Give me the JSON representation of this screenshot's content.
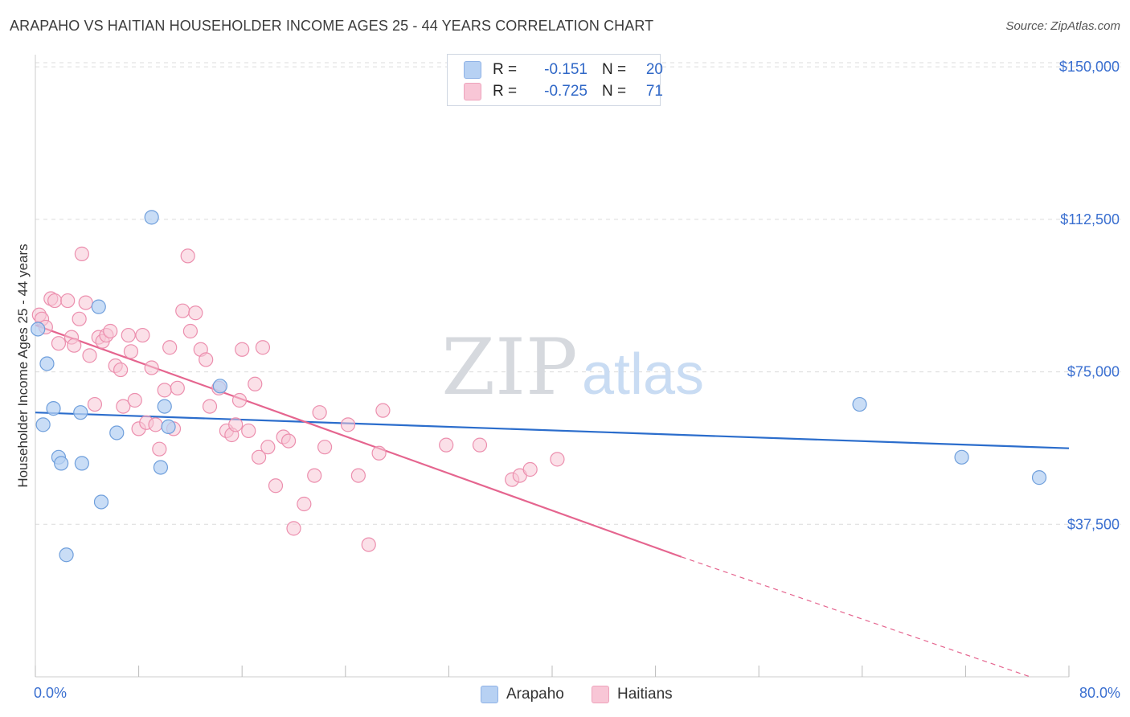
{
  "title": "ARAPAHO VS HAITIAN HOUSEHOLDER INCOME AGES 25 - 44 YEARS CORRELATION CHART",
  "source": "Source: ZipAtlas.com",
  "watermark": {
    "zip": "ZIP",
    "atlas": "atlas"
  },
  "legend": {
    "rows": [
      {
        "r_label": "R =",
        "r_value": "-0.151",
        "n_label": "N =",
        "n_value": "20",
        "color": "#aac8f0"
      },
      {
        "r_label": "R =",
        "r_value": "-0.725",
        "n_label": "N =",
        "n_value": "71",
        "color": "#f7b8cc"
      }
    ]
  },
  "bottom_legend": [
    "Arapaho",
    "Haitians"
  ],
  "colors": {
    "arapaho_fill": "#b7d1f3",
    "arapaho_stroke": "#6f9fdc",
    "arapaho_line": "#2b6dcc",
    "haitian_fill": "#f8c6d6",
    "haitian_stroke": "#ec8fae",
    "haitian_line": "#e5658f",
    "tick_label": "#3a6fd0",
    "grid": "#dcdcdc"
  },
  "chart_data": {
    "type": "scatter",
    "title": "ARAPAHO VS HAITIAN HOUSEHOLDER INCOME AGES 25 - 44 YEARS CORRELATION CHART",
    "xlabel": "",
    "ylabel": "Householder Income Ages 25 - 44 years",
    "xlim": [
      0,
      80
    ],
    "ylim": [
      0,
      153000
    ],
    "x_tick_labels": [
      "0.0%",
      "80.0%"
    ],
    "y_ticks": [
      37500,
      75000,
      112500,
      150000
    ],
    "y_tick_labels": [
      "$37,500",
      "$75,000",
      "$112,500",
      "$150,000"
    ],
    "grid": true,
    "legend_position": "top-center",
    "series": [
      {
        "name": "Arapaho",
        "points": [
          [
            0.2,
            85500
          ],
          [
            0.6,
            62000
          ],
          [
            0.9,
            77000
          ],
          [
            1.4,
            66000
          ],
          [
            1.8,
            54000
          ],
          [
            2.0,
            52500
          ],
          [
            2.4,
            30000
          ],
          [
            3.5,
            65000
          ],
          [
            3.6,
            52500
          ],
          [
            4.9,
            91000
          ],
          [
            5.1,
            43000
          ],
          [
            6.3,
            60000
          ],
          [
            9.0,
            113000
          ],
          [
            9.7,
            51500
          ],
          [
            10.0,
            66500
          ],
          [
            10.3,
            61500
          ],
          [
            14.3,
            71500
          ],
          [
            63.8,
            67000
          ],
          [
            71.7,
            54000
          ],
          [
            77.7,
            49000
          ]
        ],
        "trend": {
          "x0": 0,
          "y0": 65000,
          "x1": 80,
          "y1": 56200
        }
      },
      {
        "name": "Haitians",
        "points": [
          [
            0.3,
            89000
          ],
          [
            0.5,
            88000
          ],
          [
            0.8,
            86000
          ],
          [
            1.2,
            93000
          ],
          [
            1.5,
            92500
          ],
          [
            1.8,
            82000
          ],
          [
            2.5,
            92500
          ],
          [
            2.8,
            83500
          ],
          [
            3.0,
            81500
          ],
          [
            3.4,
            88000
          ],
          [
            3.6,
            104000
          ],
          [
            3.9,
            92000
          ],
          [
            4.2,
            79000
          ],
          [
            4.6,
            67000
          ],
          [
            4.9,
            83500
          ],
          [
            5.2,
            82500
          ],
          [
            5.5,
            84000
          ],
          [
            5.8,
            85000
          ],
          [
            6.2,
            76500
          ],
          [
            6.6,
            75500
          ],
          [
            6.8,
            66500
          ],
          [
            7.2,
            84000
          ],
          [
            7.4,
            80000
          ],
          [
            7.7,
            68000
          ],
          [
            8.0,
            61000
          ],
          [
            8.3,
            84000
          ],
          [
            8.6,
            62500
          ],
          [
            9.0,
            76000
          ],
          [
            9.3,
            62000
          ],
          [
            9.6,
            56000
          ],
          [
            10.0,
            70500
          ],
          [
            10.4,
            81000
          ],
          [
            10.7,
            61000
          ],
          [
            11.0,
            71000
          ],
          [
            11.4,
            90000
          ],
          [
            11.8,
            103500
          ],
          [
            12.0,
            85000
          ],
          [
            12.4,
            89500
          ],
          [
            12.8,
            80500
          ],
          [
            13.2,
            78000
          ],
          [
            13.5,
            66500
          ],
          [
            14.2,
            71000
          ],
          [
            14.8,
            60500
          ],
          [
            15.2,
            59500
          ],
          [
            15.5,
            62000
          ],
          [
            15.8,
            68000
          ],
          [
            16.0,
            80500
          ],
          [
            16.5,
            60500
          ],
          [
            17.0,
            72000
          ],
          [
            17.3,
            54000
          ],
          [
            17.6,
            81000
          ],
          [
            18.0,
            56500
          ],
          [
            18.6,
            47000
          ],
          [
            19.2,
            59000
          ],
          [
            19.6,
            58000
          ],
          [
            20.0,
            36500
          ],
          [
            20.8,
            42500
          ],
          [
            21.6,
            49500
          ],
          [
            22.0,
            65000
          ],
          [
            22.4,
            56500
          ],
          [
            24.2,
            62000
          ],
          [
            25.0,
            49500
          ],
          [
            25.8,
            32500
          ],
          [
            26.6,
            55000
          ],
          [
            26.9,
            65500
          ],
          [
            31.8,
            57000
          ],
          [
            34.4,
            57000
          ],
          [
            36.9,
            48500
          ],
          [
            37.5,
            49500
          ],
          [
            38.3,
            51000
          ],
          [
            40.4,
            53500
          ]
        ],
        "trend": {
          "x0": 0,
          "y0": 86500,
          "x1": 50,
          "y1": 29500,
          "x_dash_end": 77,
          "y_dash_end": 0
        }
      }
    ]
  }
}
